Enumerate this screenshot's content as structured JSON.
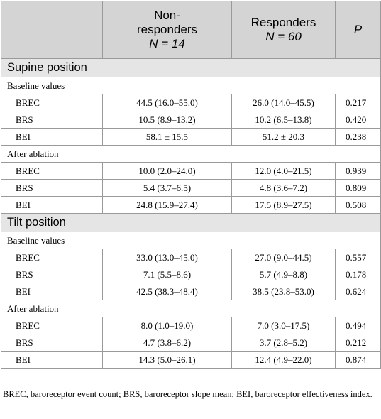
{
  "header": {
    "col1": "",
    "col2_line1": "Non-",
    "col2_line2": "responders",
    "col2_n": "N = 14",
    "col3_line1": "Responders",
    "col3_n": "N = 60",
    "col4": "P"
  },
  "sections": [
    {
      "title": "Supine position",
      "groups": [
        {
          "title": "Baseline values",
          "rows": [
            {
              "label": "BREC",
              "nonresp": "44.5 (16.0–55.0)",
              "resp": "26.0 (14.0–45.5)",
              "p": "0.217"
            },
            {
              "label": "BRS",
              "nonresp": "10.5 (8.9–13.2)",
              "resp": "10.2 (6.5–13.8)",
              "p": "0.420"
            },
            {
              "label": "BEI",
              "nonresp": "58.1 ± 15.5",
              "resp": "51.2 ± 20.3",
              "p": "0.238"
            }
          ]
        },
        {
          "title": "After ablation",
          "rows": [
            {
              "label": "BREC",
              "nonresp": "10.0 (2.0–24.0)",
              "resp": "12.0 (4.0–21.5)",
              "p": "0.939"
            },
            {
              "label": "BRS",
              "nonresp": "5.4 (3.7–6.5)",
              "resp": "4.8 (3.6–7.2)",
              "p": "0.809"
            },
            {
              "label": "BEI",
              "nonresp": "24.8 (15.9–27.4)",
              "resp": "17.5 (8.9–27.5)",
              "p": "0.508"
            }
          ]
        }
      ]
    },
    {
      "title": "Tilt position",
      "groups": [
        {
          "title": "Baseline values",
          "rows": [
            {
              "label": "BREC",
              "nonresp": "33.0 (13.0–45.0)",
              "resp": "27.0 (9.0–44.5)",
              "p": "0.557"
            },
            {
              "label": "BRS",
              "nonresp": "7.1 (5.5–8.6)",
              "resp": "5.7 (4.9–8.8)",
              "p": "0.178"
            },
            {
              "label": "BEI",
              "nonresp": "42.5 (38.3–48.4)",
              "resp": "38.5 (23.8–53.0)",
              "p": "0.624"
            }
          ]
        },
        {
          "title": "After ablation",
          "rows": [
            {
              "label": "BREC",
              "nonresp": "8.0 (1.0–19.0)",
              "resp": "7.0 (3.0–17.5)",
              "p": "0.494"
            },
            {
              "label": "BRS",
              "nonresp": "4.7 (3.8–6.2)",
              "resp": "3.7 (2.8–5.2)",
              "p": "0.212"
            },
            {
              "label": "BEI",
              "nonresp": "14.3 (5.0–26.1)",
              "resp": "12.4 (4.9–22.0)",
              "p": "0.874"
            }
          ]
        }
      ]
    }
  ],
  "footnote": "BREC, baroreceptor event count; BRS, baroreceptor slope mean; BEI, baroreceptor effectiveness index."
}
